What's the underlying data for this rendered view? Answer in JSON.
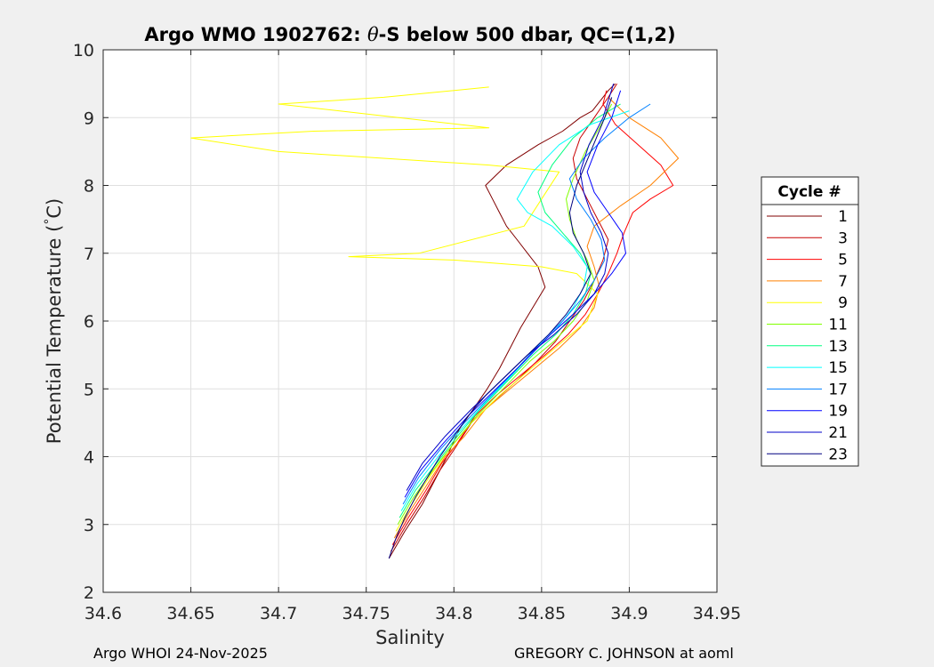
{
  "chart_data": {
    "type": "line",
    "title_prefix": "Argo WMO 1902762: ",
    "title_theta": "θ",
    "title_suffix": "-S below 500 dbar,  QC=(1,2)",
    "xlabel": "Salinity",
    "ylabel_prefix": "Potential Temperature (",
    "ylabel_degree": "°",
    "ylabel_suffix": "C)",
    "xlim": [
      34.6,
      34.95
    ],
    "ylim": [
      2,
      10
    ],
    "x_ticks": [
      34.6,
      34.65,
      34.7,
      34.75,
      34.8,
      34.85,
      34.9,
      34.95
    ],
    "x_tick_labels": [
      "34.6",
      "34.65",
      "34.7",
      "34.75",
      "34.8",
      "34.85",
      "34.9",
      "34.95"
    ],
    "y_ticks": [
      2,
      3,
      4,
      5,
      6,
      7,
      8,
      9,
      10
    ],
    "y_tick_labels": [
      "2",
      "3",
      "4",
      "5",
      "6",
      "7",
      "8",
      "9",
      "10"
    ],
    "grid": true,
    "legend_position": "outside-right",
    "legend_title": "Cycle #",
    "series": [
      {
        "name": "1",
        "color": "#800000",
        "x": [
          34.763,
          34.772,
          34.782,
          34.79,
          34.796,
          34.803,
          34.811,
          34.819,
          34.826,
          34.832,
          34.838,
          34.845,
          34.852,
          34.848,
          34.842,
          34.836,
          34.83,
          34.826,
          34.822,
          34.818,
          34.83,
          34.848,
          34.862,
          34.872,
          34.879,
          34.885,
          34.888,
          34.892
        ],
        "y": [
          2.5,
          2.9,
          3.3,
          3.7,
          4.0,
          4.4,
          4.7,
          5.0,
          5.3,
          5.6,
          5.9,
          6.2,
          6.5,
          6.8,
          7.0,
          7.2,
          7.4,
          7.6,
          7.8,
          8.0,
          8.3,
          8.6,
          8.8,
          9.0,
          9.1,
          9.3,
          9.4,
          9.5
        ]
      },
      {
        "name": "3",
        "color": "#c80000",
        "x": [
          34.764,
          34.773,
          34.783,
          34.792,
          34.8,
          34.81,
          34.822,
          34.835,
          34.847,
          34.858,
          34.866,
          34.874,
          34.88,
          34.885,
          34.888,
          34.882,
          34.876,
          34.87,
          34.868,
          34.872,
          34.88,
          34.888,
          34.893
        ],
        "y": [
          2.6,
          3.0,
          3.4,
          3.8,
          4.1,
          4.5,
          4.8,
          5.1,
          5.4,
          5.7,
          6.0,
          6.3,
          6.6,
          6.9,
          7.2,
          7.5,
          7.8,
          8.1,
          8.4,
          8.7,
          9.0,
          9.3,
          9.5
        ]
      },
      {
        "name": "5",
        "color": "#ff0000",
        "x": [
          34.765,
          34.774,
          34.784,
          34.793,
          34.802,
          34.812,
          34.824,
          34.838,
          34.852,
          34.865,
          34.875,
          34.882,
          34.888,
          34.893,
          34.897,
          34.902,
          34.912,
          34.925,
          34.918,
          34.905,
          34.892,
          34.885,
          34.887
        ],
        "y": [
          2.7,
          3.1,
          3.5,
          3.9,
          4.2,
          4.6,
          4.9,
          5.2,
          5.5,
          5.8,
          6.1,
          6.4,
          6.7,
          7.0,
          7.3,
          7.6,
          7.8,
          8.0,
          8.3,
          8.6,
          8.9,
          9.2,
          9.4
        ]
      },
      {
        "name": "7",
        "color": "#ff8000",
        "x": [
          34.766,
          34.775,
          34.785,
          34.795,
          34.806,
          34.818,
          34.832,
          34.846,
          34.86,
          34.872,
          34.88,
          34.883,
          34.88,
          34.876,
          34.88,
          34.895,
          34.912,
          34.928,
          34.918,
          34.9,
          34.888
        ],
        "y": [
          2.8,
          3.2,
          3.6,
          4.0,
          4.3,
          4.7,
          5.0,
          5.3,
          5.6,
          5.9,
          6.2,
          6.5,
          6.8,
          7.1,
          7.4,
          7.7,
          8.0,
          8.4,
          8.7,
          9.0,
          9.3
        ]
      },
      {
        "name": "9",
        "color": "#ffff00",
        "x": [
          34.767,
          34.776,
          34.786,
          34.797,
          34.81,
          34.826,
          34.844,
          34.862,
          34.876,
          34.882,
          34.87,
          34.85,
          34.8,
          34.74,
          34.78,
          34.84,
          34.86,
          34.82,
          34.7,
          34.65,
          34.72,
          34.82,
          34.7,
          34.76,
          34.82
        ],
        "y": [
          2.9,
          3.3,
          3.7,
          4.1,
          4.5,
          4.9,
          5.3,
          5.7,
          6.0,
          6.4,
          6.7,
          6.8,
          6.9,
          6.95,
          7.0,
          7.4,
          8.2,
          8.3,
          8.5,
          8.7,
          8.8,
          8.85,
          9.2,
          9.3,
          9.45
        ]
      },
      {
        "name": "11",
        "color": "#80ff00",
        "x": [
          34.768,
          34.777,
          34.788,
          34.8,
          34.813,
          34.828,
          34.843,
          34.857,
          34.868,
          34.876,
          34.88,
          34.876,
          34.87,
          34.866,
          34.864,
          34.868,
          34.875,
          34.884,
          34.89
        ],
        "y": [
          3.0,
          3.4,
          3.8,
          4.2,
          4.6,
          5.0,
          5.4,
          5.7,
          6.0,
          6.3,
          6.6,
          6.9,
          7.2,
          7.5,
          7.8,
          8.1,
          8.5,
          8.9,
          9.2
        ]
      },
      {
        "name": "13",
        "color": "#00ff80",
        "x": [
          34.769,
          34.778,
          34.79,
          34.802,
          34.815,
          34.83,
          34.845,
          34.858,
          34.868,
          34.875,
          34.878,
          34.872,
          34.862,
          34.852,
          34.848,
          34.856,
          34.868,
          34.882,
          34.895
        ],
        "y": [
          3.1,
          3.5,
          3.9,
          4.3,
          4.7,
          5.1,
          5.5,
          5.8,
          6.1,
          6.4,
          6.7,
          7.0,
          7.3,
          7.6,
          7.9,
          8.3,
          8.7,
          9.0,
          9.2
        ]
      },
      {
        "name": "15",
        "color": "#00ffff",
        "x": [
          34.77,
          34.779,
          34.791,
          34.804,
          34.818,
          34.833,
          34.847,
          34.859,
          34.868,
          34.874,
          34.876,
          34.868,
          34.856,
          34.842,
          34.836,
          34.845,
          34.86,
          34.878,
          34.9
        ],
        "y": [
          3.2,
          3.6,
          4.0,
          4.4,
          4.8,
          5.2,
          5.6,
          5.9,
          6.2,
          6.5,
          6.8,
          7.1,
          7.4,
          7.6,
          7.8,
          8.2,
          8.6,
          8.9,
          9.1
        ]
      },
      {
        "name": "17",
        "color": "#0080ff",
        "x": [
          34.771,
          34.78,
          34.792,
          34.806,
          34.821,
          34.836,
          34.85,
          34.862,
          34.872,
          34.88,
          34.886,
          34.884,
          34.878,
          34.87,
          34.866,
          34.874,
          34.886,
          34.9,
          34.912
        ],
        "y": [
          3.3,
          3.7,
          4.1,
          4.5,
          4.9,
          5.3,
          5.7,
          6.0,
          6.3,
          6.6,
          6.9,
          7.2,
          7.5,
          7.8,
          8.1,
          8.4,
          8.7,
          9.0,
          9.2
        ]
      },
      {
        "name": "19",
        "color": "#0000ff",
        "x": [
          34.772,
          34.781,
          34.794,
          34.808,
          34.824,
          34.84,
          34.855,
          34.868,
          34.88,
          34.89,
          34.898,
          34.896,
          34.888,
          34.88,
          34.876,
          34.882,
          34.89,
          34.895
        ],
        "y": [
          3.4,
          3.8,
          4.2,
          4.6,
          5.0,
          5.4,
          5.8,
          6.1,
          6.4,
          6.7,
          7.0,
          7.3,
          7.6,
          7.9,
          8.2,
          8.6,
          9.0,
          9.4
        ]
      },
      {
        "name": "21",
        "color": "#0000c8",
        "x": [
          34.773,
          34.782,
          34.795,
          34.81,
          34.826,
          34.842,
          34.857,
          34.87,
          34.88,
          34.886,
          34.888,
          34.884,
          34.878,
          34.874,
          34.872,
          34.877,
          34.885,
          34.891
        ],
        "y": [
          3.5,
          3.9,
          4.3,
          4.7,
          5.1,
          5.5,
          5.8,
          6.1,
          6.4,
          6.7,
          7.0,
          7.3,
          7.6,
          7.9,
          8.2,
          8.6,
          9.0,
          9.5
        ]
      },
      {
        "name": "23",
        "color": "#000080",
        "x": [
          34.763,
          34.767,
          34.772,
          34.778,
          34.785,
          34.792,
          34.8,
          34.808,
          34.818,
          34.83,
          34.842,
          34.854,
          34.864,
          34.872,
          34.878,
          34.874,
          34.868,
          34.866,
          34.87,
          34.878,
          34.886,
          34.89
        ],
        "y": [
          2.5,
          2.8,
          3.1,
          3.4,
          3.7,
          4.0,
          4.3,
          4.6,
          4.9,
          5.2,
          5.5,
          5.8,
          6.1,
          6.4,
          6.7,
          7.0,
          7.3,
          7.6,
          8.0,
          8.5,
          9.0,
          9.3
        ]
      }
    ]
  },
  "footer": {
    "left": "Argo WHOI 24-Nov-2025",
    "right": "GREGORY C. JOHNSON at aoml"
  }
}
